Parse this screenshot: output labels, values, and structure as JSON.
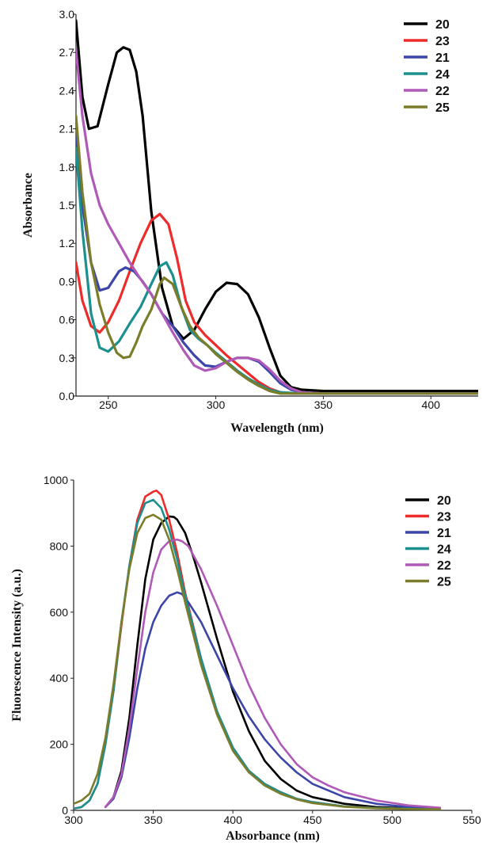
{
  "chart_data": [
    {
      "type": "line",
      "title": "",
      "xlabel": "Wavelength (nm)",
      "ylabel": "Absorbance",
      "xlim": [
        235,
        422
      ],
      "ylim": [
        0,
        3.0
      ],
      "xticks": [
        "250",
        "300",
        "350",
        "400"
      ],
      "yticks": [
        "0.0",
        "0.3",
        "0.6",
        "0.9",
        "1.2",
        "1.5",
        "1.8",
        "2.1",
        "2.4",
        "2.7",
        "3.0"
      ],
      "grid": false,
      "legend_position": "top-right",
      "series": [
        {
          "name": "20",
          "color": "#000000",
          "x": [
            235,
            238,
            241,
            245,
            250,
            254,
            257,
            260,
            263,
            266,
            270,
            275,
            280,
            285,
            290,
            295,
            300,
            305,
            310,
            315,
            320,
            325,
            330,
            335,
            340,
            350,
            380,
            422
          ],
          "y": [
            2.95,
            2.35,
            2.1,
            2.12,
            2.45,
            2.7,
            2.74,
            2.72,
            2.55,
            2.2,
            1.45,
            0.85,
            0.55,
            0.45,
            0.52,
            0.68,
            0.82,
            0.89,
            0.88,
            0.8,
            0.62,
            0.38,
            0.16,
            0.07,
            0.05,
            0.04,
            0.04,
            0.04
          ]
        },
        {
          "name": "23",
          "color": "#ee2b2b",
          "x": [
            235,
            238,
            242,
            246,
            250,
            255,
            260,
            265,
            270,
            274,
            278,
            282,
            286,
            290,
            295,
            300,
            305,
            310,
            315,
            320,
            325,
            330,
            335,
            340,
            350,
            380,
            422
          ],
          "y": [
            1.05,
            0.75,
            0.55,
            0.5,
            0.58,
            0.75,
            0.98,
            1.2,
            1.38,
            1.43,
            1.35,
            1.08,
            0.75,
            0.58,
            0.48,
            0.4,
            0.32,
            0.25,
            0.18,
            0.11,
            0.06,
            0.03,
            0.02,
            0.02,
            0.02,
            0.02,
            0.02
          ]
        },
        {
          "name": "21",
          "color": "#3b46a8",
          "x": [
            235,
            238,
            242,
            246,
            250,
            255,
            258,
            262,
            266,
            270,
            275,
            280,
            285,
            290,
            295,
            300,
            305,
            310,
            315,
            320,
            325,
            330,
            335,
            340,
            350,
            380,
            422
          ],
          "y": [
            2.1,
            1.5,
            1.05,
            0.83,
            0.85,
            0.98,
            1.01,
            0.98,
            0.9,
            0.8,
            0.65,
            0.55,
            0.42,
            0.32,
            0.24,
            0.23,
            0.27,
            0.3,
            0.3,
            0.27,
            0.19,
            0.1,
            0.05,
            0.03,
            0.02,
            0.02,
            0.02
          ]
        },
        {
          "name": "24",
          "color": "#1c8f8f",
          "x": [
            235,
            238,
            242,
            246,
            250,
            255,
            260,
            265,
            270,
            274,
            277,
            280,
            284,
            288,
            292,
            296,
            300,
            305,
            310,
            315,
            320,
            325,
            330,
            340,
            350,
            380,
            422
          ],
          "y": [
            1.95,
            1.3,
            0.65,
            0.38,
            0.35,
            0.43,
            0.57,
            0.7,
            0.88,
            1.02,
            1.05,
            0.95,
            0.7,
            0.52,
            0.45,
            0.4,
            0.34,
            0.27,
            0.2,
            0.14,
            0.09,
            0.05,
            0.03,
            0.02,
            0.02,
            0.02,
            0.02
          ]
        },
        {
          "name": "22",
          "color": "#b05ab8",
          "x": [
            235,
            238,
            242,
            246,
            250,
            255,
            260,
            265,
            270,
            275,
            280,
            285,
            290,
            295,
            300,
            305,
            310,
            315,
            320,
            325,
            330,
            335,
            340,
            350,
            380,
            422
          ],
          "y": [
            2.72,
            2.2,
            1.75,
            1.5,
            1.35,
            1.2,
            1.05,
            0.92,
            0.8,
            0.65,
            0.5,
            0.36,
            0.24,
            0.2,
            0.22,
            0.27,
            0.3,
            0.3,
            0.28,
            0.21,
            0.12,
            0.06,
            0.03,
            0.02,
            0.02,
            0.02
          ]
        },
        {
          "name": "25",
          "color": "#7b7d2a",
          "x": [
            235,
            238,
            242,
            246,
            250,
            254,
            257,
            260,
            263,
            266,
            270,
            274,
            276,
            280,
            284,
            288,
            292,
            296,
            300,
            305,
            310,
            315,
            320,
            325,
            330,
            340,
            350,
            380,
            422
          ],
          "y": [
            2.2,
            1.6,
            1.05,
            0.72,
            0.5,
            0.34,
            0.3,
            0.31,
            0.42,
            0.55,
            0.68,
            0.88,
            0.93,
            0.88,
            0.7,
            0.55,
            0.46,
            0.4,
            0.33,
            0.26,
            0.19,
            0.13,
            0.08,
            0.04,
            0.02,
            0.02,
            0.02,
            0.02,
            0.02
          ]
        }
      ]
    },
    {
      "type": "line",
      "title": "",
      "xlabel": "Absorbance (nm)",
      "ylabel": "Fluorescence Intensity (a.u.)",
      "xlim": [
        300,
        550
      ],
      "ylim": [
        0,
        1000
      ],
      "xticks": [
        "300",
        "350",
        "400",
        "450",
        "500",
        "550"
      ],
      "yticks": [
        "0",
        "200",
        "400",
        "600",
        "800",
        "1000"
      ],
      "grid": false,
      "legend_position": "top-right",
      "series": [
        {
          "name": "20",
          "color": "#000000",
          "x": [
            320,
            325,
            330,
            335,
            340,
            345,
            350,
            355,
            360,
            363,
            365,
            370,
            375,
            380,
            390,
            400,
            410,
            420,
            430,
            440,
            450,
            470,
            490,
            510,
            530
          ],
          "y": [
            10,
            40,
            120,
            280,
            500,
            700,
            820,
            870,
            890,
            888,
            880,
            840,
            770,
            690,
            520,
            360,
            240,
            150,
            95,
            60,
            40,
            20,
            10,
            6,
            4
          ]
        },
        {
          "name": "23",
          "color": "#ee2b2b",
          "x": [
            300,
            305,
            310,
            315,
            320,
            325,
            330,
            335,
            340,
            345,
            350,
            352,
            355,
            360,
            365,
            370,
            380,
            390,
            400,
            410,
            420,
            430,
            440,
            450,
            470,
            490,
            510,
            530
          ],
          "y": [
            5,
            10,
            30,
            80,
            200,
            360,
            560,
            740,
            880,
            950,
            965,
            968,
            955,
            880,
            780,
            660,
            460,
            300,
            190,
            120,
            80,
            55,
            35,
            25,
            12,
            7,
            5,
            3
          ]
        },
        {
          "name": "21",
          "color": "#3b46a8",
          "x": [
            320,
            325,
            330,
            335,
            340,
            345,
            350,
            355,
            360,
            365,
            368,
            372,
            380,
            390,
            400,
            410,
            420,
            430,
            440,
            450,
            470,
            490,
            510,
            530
          ],
          "y": [
            10,
            35,
            100,
            220,
            370,
            490,
            570,
            620,
            650,
            660,
            655,
            630,
            570,
            470,
            370,
            285,
            215,
            160,
            115,
            80,
            40,
            20,
            10,
            6
          ]
        },
        {
          "name": "24",
          "color": "#1c8f8f",
          "x": [
            300,
            305,
            310,
            315,
            320,
            325,
            330,
            335,
            340,
            345,
            350,
            355,
            360,
            365,
            370,
            380,
            390,
            400,
            410,
            420,
            430,
            440,
            450,
            470,
            490,
            510,
            530
          ],
          "y": [
            5,
            10,
            30,
            80,
            200,
            360,
            570,
            740,
            870,
            930,
            940,
            915,
            850,
            760,
            650,
            460,
            300,
            190,
            120,
            80,
            55,
            35,
            25,
            12,
            7,
            5,
            3
          ]
        },
        {
          "name": "22",
          "color": "#b05ab8",
          "x": [
            320,
            325,
            330,
            335,
            340,
            345,
            350,
            355,
            360,
            365,
            368,
            372,
            380,
            390,
            400,
            410,
            420,
            430,
            440,
            450,
            460,
            470,
            490,
            510,
            530
          ],
          "y": [
            10,
            40,
            110,
            250,
            430,
            600,
            720,
            790,
            815,
            820,
            815,
            800,
            730,
            620,
            500,
            380,
            280,
            200,
            140,
            100,
            75,
            55,
            30,
            15,
            8
          ]
        },
        {
          "name": "25",
          "color": "#7b7d2a",
          "x": [
            300,
            305,
            310,
            315,
            320,
            325,
            330,
            335,
            340,
            345,
            350,
            355,
            360,
            365,
            370,
            380,
            390,
            400,
            410,
            420,
            430,
            440,
            450,
            470,
            490,
            510,
            530
          ],
          "y": [
            20,
            30,
            50,
            110,
            220,
            380,
            570,
            730,
            840,
            885,
            895,
            880,
            820,
            730,
            630,
            440,
            290,
            180,
            115,
            75,
            50,
            33,
            22,
            11,
            6,
            4,
            3
          ]
        }
      ]
    }
  ]
}
